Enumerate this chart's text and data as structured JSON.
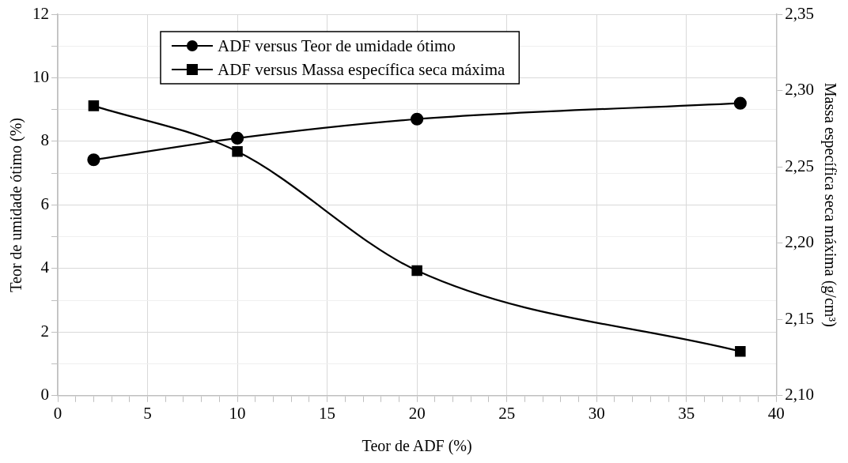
{
  "chart_data": {
    "type": "line",
    "xlabel": "Teor de ADF (%)",
    "ylabel": "Teor de umidade ótimo (%)",
    "y2label": "Massa específica seca máxima (g/cm³)",
    "x": [
      2,
      10,
      20,
      38
    ],
    "series": [
      {
        "name": "ADF versus Teor de umidade ótimo",
        "color": "#000000",
        "marker": "circle",
        "values": [
          7.42,
          8.1,
          8.7,
          9.2
        ]
      },
      {
        "name": "ADF versus Massa específica seca máxima",
        "color": "#000000",
        "marker": "square",
        "axis": "y2",
        "values": [
          2.29,
          2.26,
          2.182,
          2.129
        ]
      }
    ],
    "xlim": [
      0,
      40
    ],
    "xticks": [
      0,
      {
        "value": 1,
        "label": null
      },
      {
        "value": 2,
        "label": null
      },
      {
        "value": 3,
        "label": null
      },
      {
        "value": 4,
        "label": null
      },
      5,
      {
        "value": 6,
        "label": null
      },
      {
        "value": 7,
        "label": null
      },
      {
        "value": 8,
        "label": null
      },
      {
        "value": 9,
        "label": null
      },
      10,
      {
        "value": 11,
        "label": null
      },
      {
        "value": 12,
        "label": null
      },
      {
        "value": 13,
        "label": null
      },
      {
        "value": 14,
        "label": null
      },
      15,
      {
        "value": 16,
        "label": null
      },
      {
        "value": 17,
        "label": null
      },
      {
        "value": 18,
        "label": null
      },
      {
        "value": 19,
        "label": null
      },
      20,
      {
        "value": 21,
        "label": null
      },
      {
        "value": 22,
        "label": null
      },
      {
        "value": 23,
        "label": null
      },
      {
        "value": 24,
        "label": null
      },
      25,
      {
        "value": 26,
        "label": null
      },
      {
        "value": 27,
        "label": null
      },
      {
        "value": 28,
        "label": null
      },
      {
        "value": 29,
        "label": null
      },
      30,
      {
        "value": 31,
        "label": null
      },
      {
        "value": 32,
        "label": null
      },
      {
        "value": 33,
        "label": null
      },
      {
        "value": 34,
        "label": null
      },
      35,
      {
        "value": 36,
        "label": null
      },
      {
        "value": 37,
        "label": null
      },
      {
        "value": 38,
        "label": null
      },
      {
        "value": 39,
        "label": null
      },
      40
    ],
    "ylim": [
      0,
      12
    ],
    "yticks": [
      0,
      {
        "value": 1,
        "label": null
      },
      2,
      {
        "value": 3,
        "label": null
      },
      4,
      {
        "value": 5,
        "label": null
      },
      6,
      {
        "value": 7,
        "label": null
      },
      8,
      {
        "value": 9,
        "label": null
      },
      10,
      {
        "value": 11,
        "label": null
      },
      12
    ],
    "y2lim": [
      2.1,
      2.35
    ],
    "y2ticks": [
      {
        "value": 2.1,
        "label": "2,10"
      },
      {
        "value": 2.15,
        "label": "2,15"
      },
      {
        "value": 2.2,
        "label": "2,20"
      },
      {
        "value": 2.25,
        "label": "2,25"
      },
      {
        "value": 2.3,
        "label": "2,30"
      },
      {
        "value": 2.35,
        "label": "2,35"
      }
    ],
    "grid": true,
    "legend": "top",
    "line_style": "solid"
  }
}
